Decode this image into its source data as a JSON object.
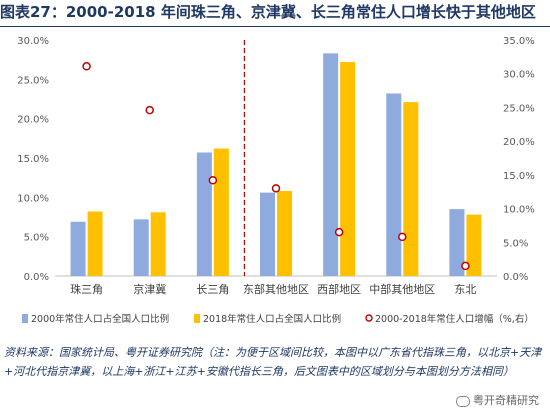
{
  "title": "图表27：2000-2018 年间珠三角、京津冀、长三角常住人口增长快于其他地区",
  "source_note": "资料来源：国家统计局、粤开证券研究院（注：为便于区域间比较，本图中以广东省代指珠三角，以北京+天津+河北代指京津冀，以上海+浙江+江苏+安徽代指长三角，后文图表中的区域划分与本图划分方法相同）",
  "watermark": "粤开奇精研究",
  "chart_data": {
    "type": "bar",
    "categories": [
      "珠三角",
      "京津冀",
      "长三角",
      "东部其他地区",
      "西部地区",
      "中部其他地区",
      "东北"
    ],
    "series": [
      {
        "name": "2000年常住人口占全国人口比例",
        "type": "bar",
        "axis": "left",
        "color": "#8faadc",
        "values": [
          6.9,
          7.2,
          15.7,
          10.6,
          28.3,
          23.2,
          8.5
        ]
      },
      {
        "name": "2018年常住人口占全国人口比例",
        "type": "bar",
        "axis": "left",
        "color": "#ffc000",
        "values": [
          8.2,
          8.1,
          16.2,
          10.8,
          27.2,
          22.1,
          7.8
        ]
      },
      {
        "name": "2000-2018年常住人口增幅（%,右）",
        "type": "scatter",
        "axis": "right",
        "color": "#c00000",
        "values": [
          31.1,
          24.6,
          14.2,
          13.0,
          6.5,
          5.8,
          1.5
        ]
      }
    ],
    "y_left": {
      "min": 0,
      "max": 30,
      "step": 5,
      "tick_labels": [
        "0.0%",
        "5.0%",
        "10.0%",
        "15.0%",
        "20.0%",
        "25.0%",
        "30.0%"
      ]
    },
    "y_right": {
      "min": 0,
      "max": 35,
      "step": 5,
      "tick_labels": [
        "0.0%",
        "5.0%",
        "10.0%",
        "15.0%",
        "20.0%",
        "25.0%",
        "30.0%",
        "35.0%"
      ]
    },
    "divider_after_index": 2,
    "grid": false,
    "legend_position": "bottom"
  }
}
